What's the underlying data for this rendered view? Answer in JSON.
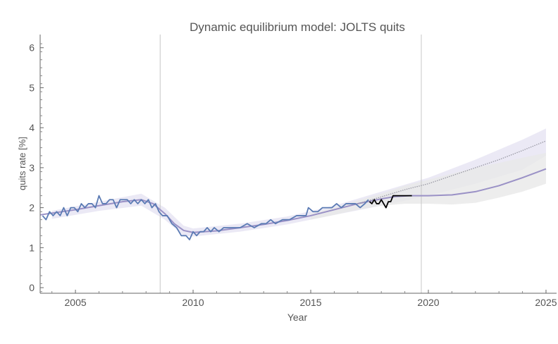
{
  "chart_data": {
    "type": "line",
    "title": "Dynamic equilibrium model: JOLTS quits",
    "xlabel": "Year",
    "ylabel": "quits rate [%]",
    "xlim": [
      2003.5,
      2025.45
    ],
    "ylim": [
      -0.14,
      6.33
    ],
    "xticks": [
      2005,
      2010,
      2015,
      2020,
      2025
    ],
    "yticks": [
      0,
      1,
      2,
      3,
      4,
      5,
      6
    ],
    "grid": false,
    "vertical_markers": [
      2008.6,
      2019.7
    ],
    "colors": {
      "data": "#5b7bb4",
      "post_data": "#000000",
      "model": "#9a91c6",
      "band": "#e6e3f3",
      "gray_band": "#e8e8e8",
      "dotted": "#9a9aa5"
    },
    "series": [
      {
        "role": "data",
        "x": [
          2003.6,
          2003.75,
          2003.9,
          2004.05,
          2004.2,
          2004.35,
          2004.5,
          2004.65,
          2004.8,
          2004.95,
          2005.1,
          2005.25,
          2005.4,
          2005.55,
          2005.7,
          2005.85,
          2006.0,
          2006.15,
          2006.3,
          2006.45,
          2006.6,
          2006.75,
          2006.9,
          2007.05,
          2007.2,
          2007.35,
          2007.5,
          2007.65,
          2007.8,
          2007.95,
          2008.1,
          2008.25,
          2008.4,
          2008.55,
          2008.7,
          2008.9,
          2009.1,
          2009.3,
          2009.5,
          2009.7,
          2009.85,
          2010.0,
          2010.15,
          2010.3,
          2010.45,
          2010.6,
          2010.75,
          2010.9,
          2011.1,
          2011.3,
          2011.5,
          2011.7,
          2012.0,
          2012.3,
          2012.6,
          2012.9,
          2013.1,
          2013.3,
          2013.5,
          2013.8,
          2014.1,
          2014.4,
          2014.6,
          2014.8,
          2014.9,
          2015.1,
          2015.3,
          2015.5,
          2015.7,
          2015.9,
          2016.1,
          2016.3,
          2016.5,
          2016.7,
          2016.9,
          2017.1,
          2017.3,
          2017.45
        ],
        "y": [
          1.8,
          1.7,
          1.9,
          1.8,
          1.9,
          1.8,
          2.0,
          1.8,
          2.0,
          2.0,
          1.9,
          2.1,
          2.0,
          2.1,
          2.1,
          2.0,
          2.3,
          2.1,
          2.1,
          2.2,
          2.2,
          2.0,
          2.2,
          2.2,
          2.2,
          2.1,
          2.2,
          2.1,
          2.2,
          2.1,
          2.2,
          2.0,
          2.1,
          1.9,
          1.8,
          1.8,
          1.6,
          1.5,
          1.3,
          1.3,
          1.2,
          1.4,
          1.3,
          1.4,
          1.4,
          1.5,
          1.4,
          1.5,
          1.4,
          1.5,
          1.5,
          1.5,
          1.5,
          1.6,
          1.5,
          1.6,
          1.6,
          1.7,
          1.6,
          1.7,
          1.7,
          1.8,
          1.8,
          1.8,
          2.0,
          1.9,
          1.9,
          2.0,
          2.0,
          2.0,
          2.1,
          2.0,
          2.1,
          2.1,
          2.1,
          2.0,
          2.1,
          2.2
        ]
      },
      {
        "role": "post_data",
        "x": [
          2017.5,
          2017.6,
          2017.7,
          2017.8,
          2017.9,
          2018.0,
          2018.1,
          2018.2,
          2018.3,
          2018.4,
          2018.5,
          2019.3
        ],
        "y": [
          2.15,
          2.1,
          2.2,
          2.1,
          2.1,
          2.2,
          2.1,
          2.0,
          2.15,
          2.15,
          2.3,
          2.3
        ]
      },
      {
        "role": "model",
        "x": [
          2003.5,
          2005,
          2006,
          2007,
          2007.8,
          2008.3,
          2008.8,
          2009.2,
          2009.6,
          2010,
          2011,
          2012,
          2013,
          2014,
          2015,
          2016,
          2017,
          2018,
          2018.6,
          2019.2,
          2020,
          2021,
          2022,
          2023,
          2024,
          2025
        ],
        "y": [
          1.82,
          1.95,
          2.05,
          2.15,
          2.2,
          2.1,
          1.85,
          1.6,
          1.43,
          1.38,
          1.42,
          1.5,
          1.58,
          1.68,
          1.8,
          1.95,
          2.1,
          2.22,
          2.28,
          2.3,
          2.3,
          2.32,
          2.4,
          2.55,
          2.75,
          2.97
        ]
      },
      {
        "role": "dotted",
        "x": [
          2017,
          2018,
          2019,
          2020,
          2021,
          2022,
          2023,
          2024,
          2025
        ],
        "y": [
          2.1,
          2.27,
          2.45,
          2.6,
          2.8,
          3.0,
          3.2,
          3.43,
          3.67
        ]
      }
    ],
    "bands": [
      {
        "role": "band",
        "x": [
          2004,
          2006,
          2007.8,
          2008.8,
          2009.6,
          2010,
          2012,
          2014,
          2016,
          2018,
          2020,
          2022,
          2024,
          2025
        ],
        "lower": [
          1.72,
          1.92,
          2.05,
          1.7,
          1.3,
          1.28,
          1.4,
          1.58,
          1.82,
          2.05,
          2.3,
          2.6,
          2.95,
          3.3
        ],
        "upper": [
          1.92,
          2.15,
          2.35,
          2.0,
          1.55,
          1.48,
          1.6,
          1.78,
          2.05,
          2.4,
          2.75,
          3.2,
          3.7,
          3.98
        ]
      },
      {
        "role": "gray_band",
        "x": [
          2015,
          2016,
          2017,
          2018,
          2019,
          2020,
          2021,
          2022,
          2023,
          2024,
          2025
        ],
        "lower": [
          1.7,
          1.82,
          1.95,
          2.05,
          2.1,
          2.1,
          2.08,
          2.12,
          2.25,
          2.4,
          2.6
        ],
        "upper": [
          1.85,
          2.0,
          2.18,
          2.35,
          2.55,
          2.7,
          2.85,
          3.0,
          3.12,
          3.25,
          3.37
        ]
      }
    ]
  }
}
